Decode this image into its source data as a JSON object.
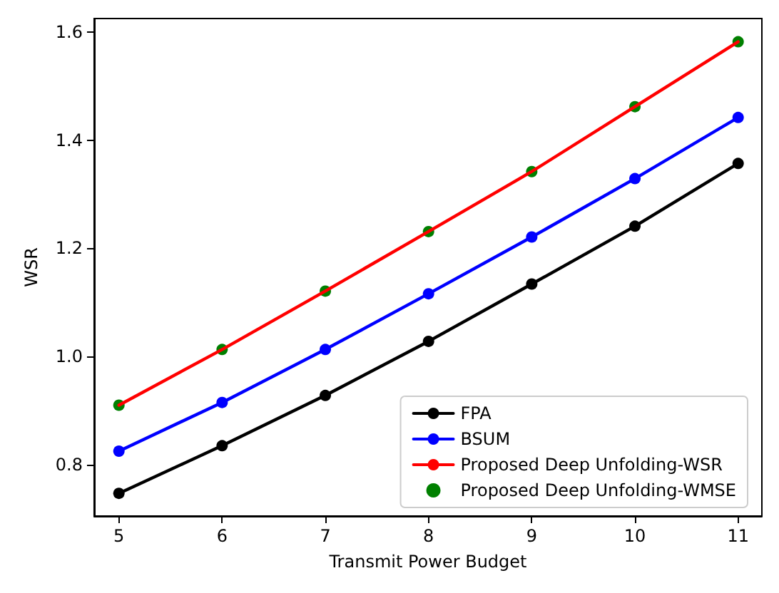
{
  "chart_data": {
    "type": "line",
    "xlabel": "Transmit Power Budget",
    "ylabel": "WSR",
    "x": [
      5,
      6,
      7,
      8,
      9,
      10,
      11
    ],
    "series": [
      {
        "name": "FPA",
        "color": "#000000",
        "marker": "circle",
        "values": [
          0.747,
          0.835,
          0.928,
          1.028,
          1.134,
          1.241,
          1.357
        ]
      },
      {
        "name": "BSUM",
        "color": "#0000ff",
        "marker": "circle",
        "values": [
          0.825,
          0.915,
          1.013,
          1.116,
          1.221,
          1.329,
          1.442
        ]
      },
      {
        "name": "Proposed Deep Unfolding-WSR",
        "color": "#ff0000",
        "marker": "none",
        "values": [
          0.91,
          1.013,
          1.121,
          1.231,
          1.342,
          1.462,
          1.582
        ]
      },
      {
        "name": "Proposed Deep Unfolding-WMSE",
        "color": "#008000",
        "type": "scatter",
        "marker": "circle",
        "values": [
          0.91,
          1.013,
          1.121,
          1.231,
          1.342,
          1.462,
          1.582
        ]
      }
    ],
    "xlim": [
      4.76,
      11.23
    ],
    "xticks": [
      5,
      6,
      7,
      8,
      9,
      10,
      11
    ],
    "ylim": [
      0.705,
      1.625
    ],
    "yticks": [
      {
        "value": 0.8,
        "label": "0.8"
      },
      {
        "value": 1,
        "label": "1.0"
      },
      {
        "value": 1.2,
        "label": "1.2"
      },
      {
        "value": 1.4,
        "label": "1.4"
      },
      {
        "value": 1.6,
        "label": "1.6"
      }
    ],
    "grid": false,
    "legend": "bottom right"
  }
}
